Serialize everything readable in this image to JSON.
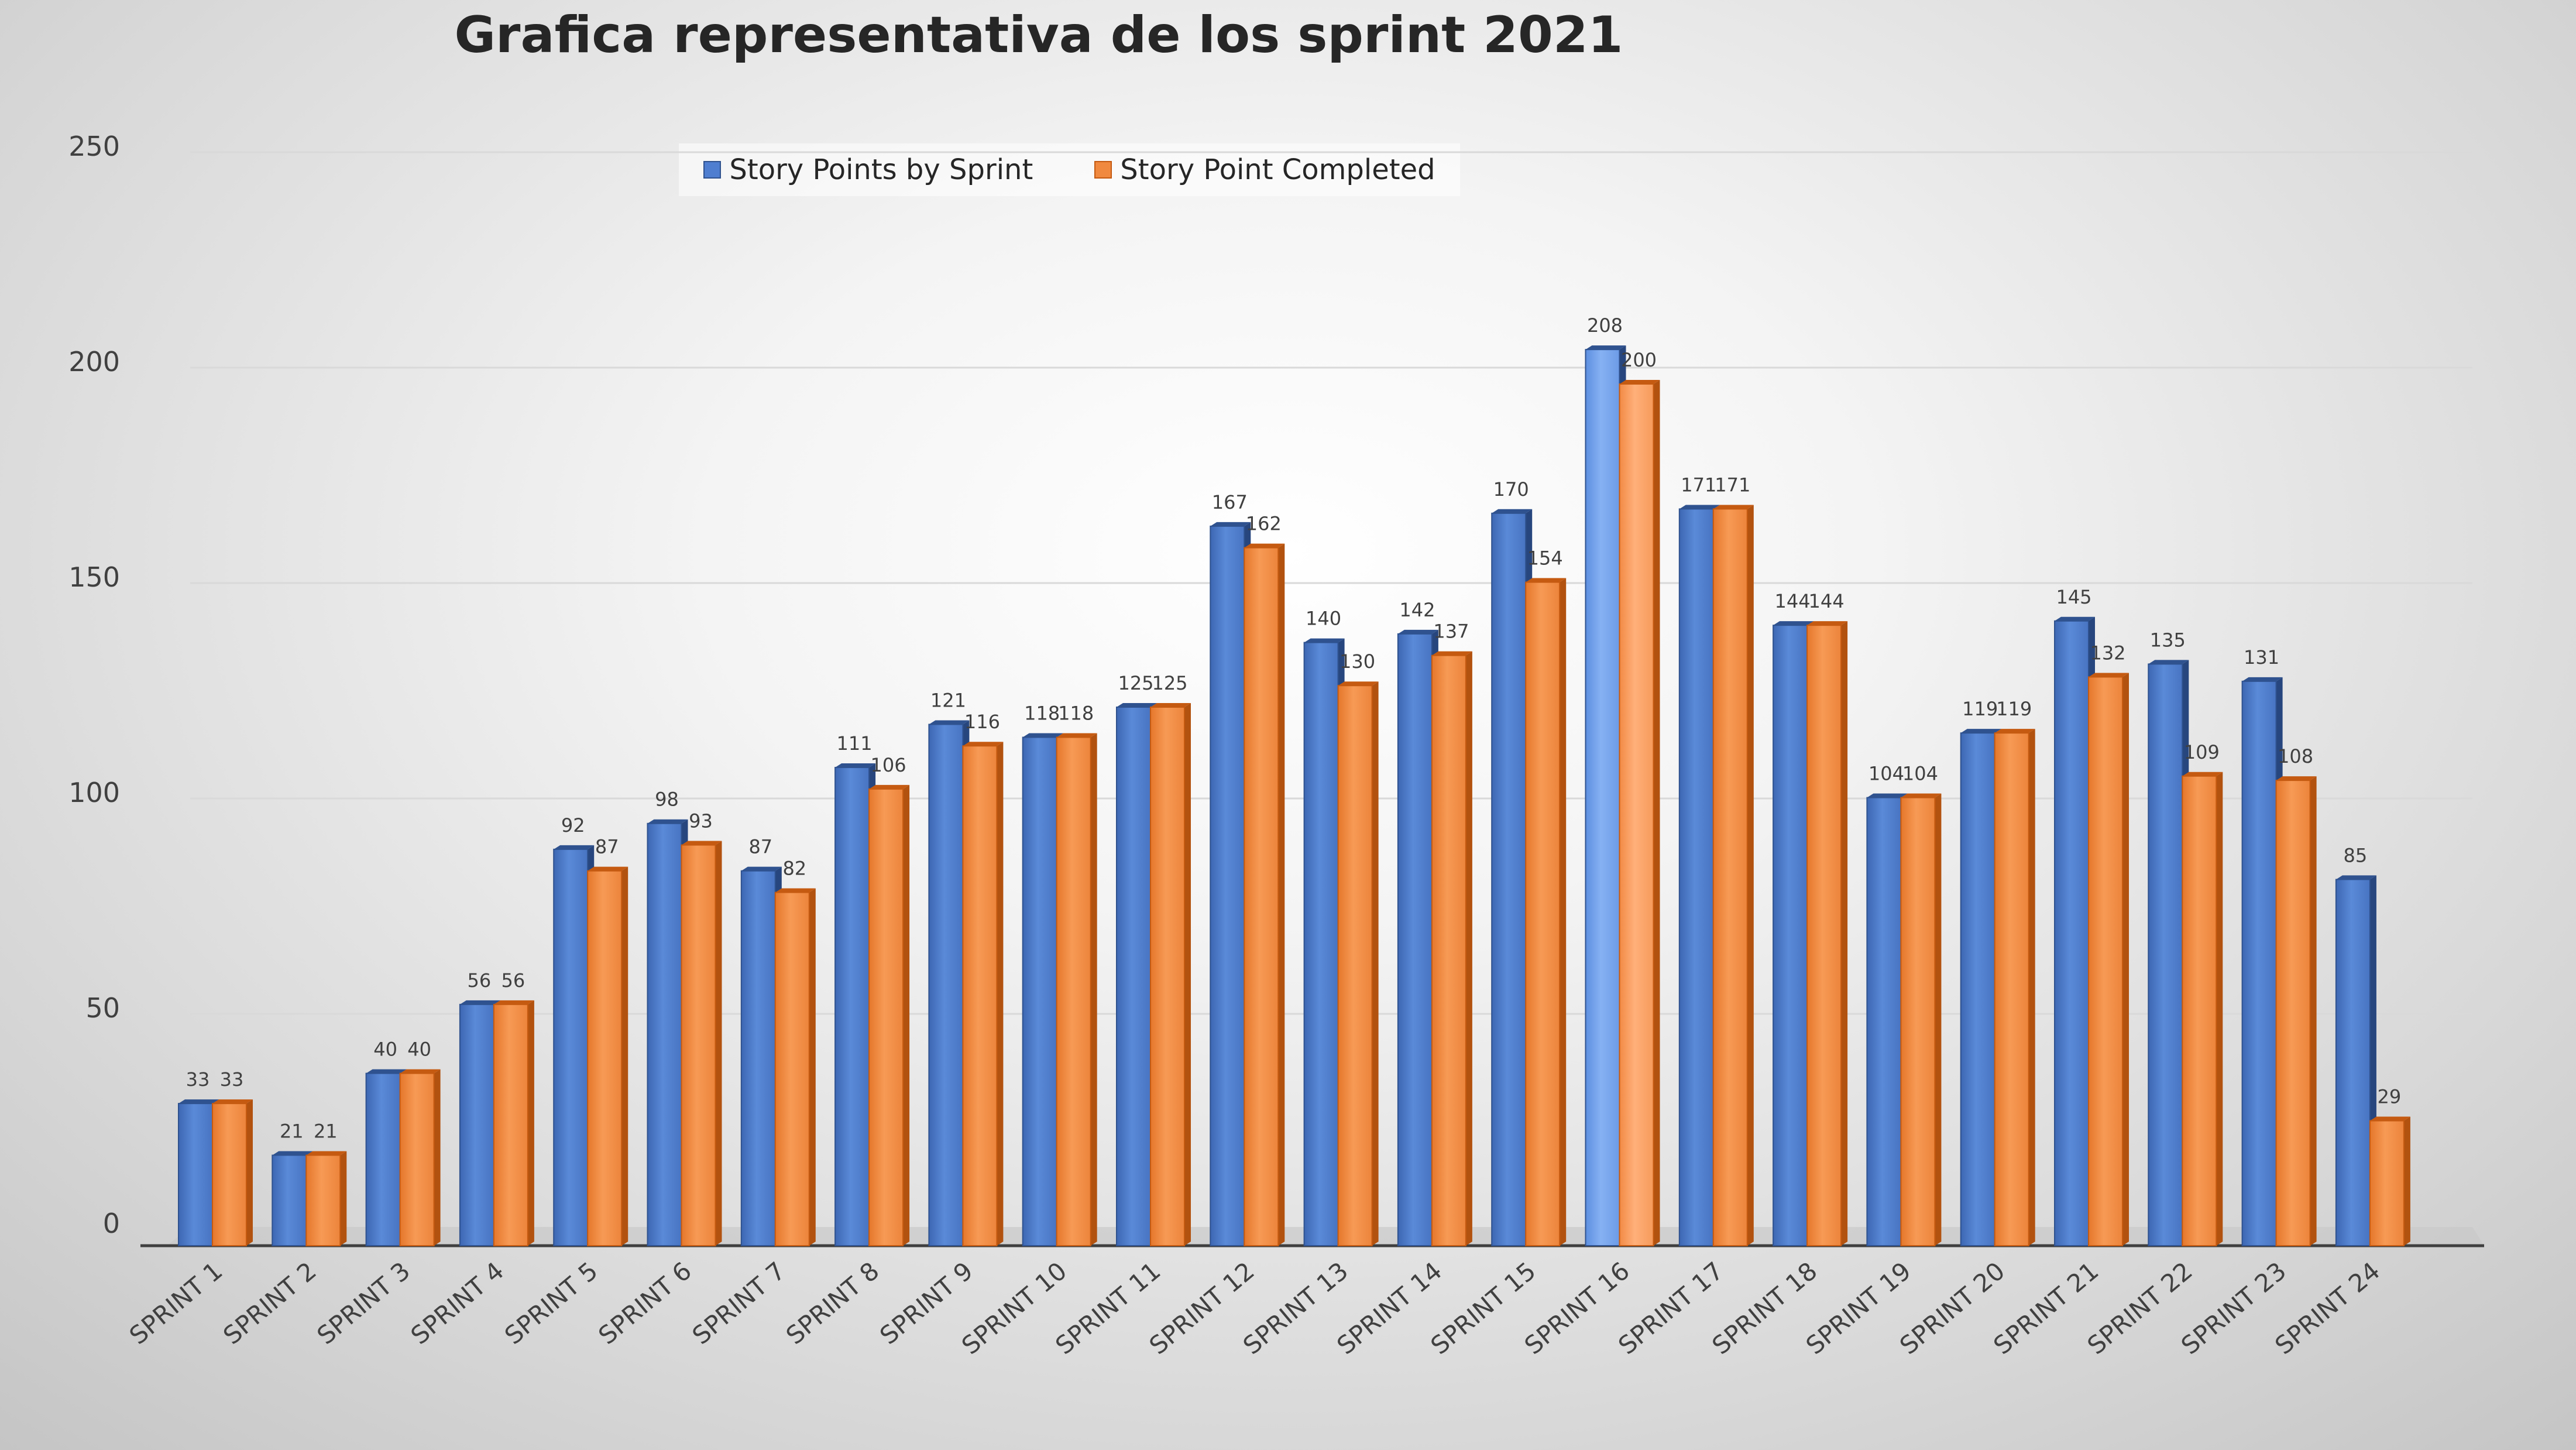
{
  "chart_data": {
    "type": "bar",
    "title": "Grafica representativa de los sprint 2021",
    "xlabel": "",
    "ylabel": "",
    "ylim": [
      0,
      250
    ],
    "yticks": [
      "0",
      "50",
      "100",
      "150",
      "200",
      "250"
    ],
    "grid": true,
    "legend_position": "top",
    "categories": [
      "SPRINT 1",
      "SPRINT 2",
      "SPRINT 3",
      "SPRINT 4",
      "SPRINT 5",
      "SPRINT 6",
      "SPRINT 7",
      "SPRINT 8",
      "SPRINT 9",
      "SPRINT 10",
      "SPRINT 11",
      "SPRINT 12",
      "SPRINT 13",
      "SPRINT 14",
      "SPRINT 15",
      "SPRINT 16",
      "SPRINT 17",
      "SPRINT 18",
      "SPRINT 19",
      "SPRINT 20",
      "SPRINT 21",
      "SPRINT 22",
      "SPRINT 23",
      "SPRINT 24"
    ],
    "series": [
      {
        "name": "Story Points by Sprint",
        "color": "#4f7ed0",
        "values": [
          33,
          21,
          40,
          56,
          92,
          98,
          87,
          111,
          121,
          118,
          125,
          167,
          140,
          142,
          170,
          208,
          171,
          144,
          104,
          119,
          145,
          135,
          131,
          85
        ]
      },
      {
        "name": "Story Point Completed",
        "color": "#f0893f",
        "values": [
          33,
          21,
          40,
          56,
          87,
          93,
          82,
          106,
          116,
          118,
          125,
          162,
          130,
          137,
          154,
          200,
          171,
          144,
          104,
          119,
          132,
          109,
          108,
          29
        ]
      }
    ]
  }
}
